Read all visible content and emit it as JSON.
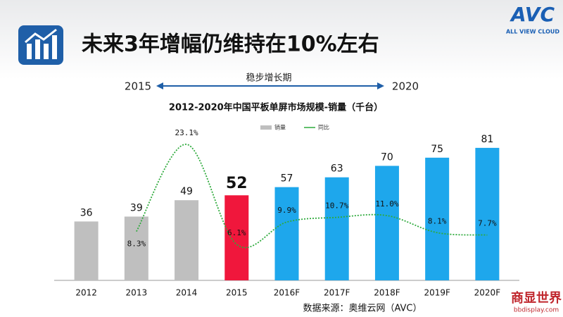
{
  "header": {
    "title": "未来3年增幅仍维持在10%左右",
    "logo": "AVC",
    "logo_subtitle": "ALL VIEW CLOUD"
  },
  "timeline": {
    "label": "稳步增长期",
    "start": "2015",
    "end": "2020"
  },
  "chart_data": {
    "type": "bar",
    "title": "2012-2020年中国平板单屏市场规模-销量（千台）",
    "categories": [
      "2012",
      "2013",
      "2014",
      "2015",
      "2016F",
      "2017F",
      "2018F",
      "2019F",
      "2020F"
    ],
    "series": [
      {
        "name": "销量",
        "color": "#bfbfbf",
        "colors": [
          "#bfbfbf",
          "#bfbfbf",
          "#bfbfbf",
          "#f0173c",
          "#1ea7ec",
          "#1ea7ec",
          "#1ea7ec",
          "#1ea7ec",
          "#1ea7ec"
        ],
        "values": [
          36,
          39,
          49,
          52,
          57,
          63,
          70,
          75,
          81
        ]
      },
      {
        "name": "同比",
        "type": "line",
        "axis": "y2",
        "color": "#2eaa3c",
        "values": [
          null,
          8.3,
          23.1,
          6.1,
          9.9,
          10.7,
          11.0,
          8.1,
          7.7
        ],
        "value_labels": [
          null,
          "8.3%",
          "23.1%",
          "6.1%",
          "9.9%",
          "10.7%",
          "11.0%",
          "8.1%",
          "7.7%"
        ]
      }
    ],
    "ylim": [
      0,
      90
    ],
    "y2lim": [
      0,
      25
    ],
    "legend": "top"
  },
  "source": "数据来源：奥维云网（AVC）",
  "watermark": {
    "title": "商显世界",
    "url": "bbdisplay.com"
  }
}
